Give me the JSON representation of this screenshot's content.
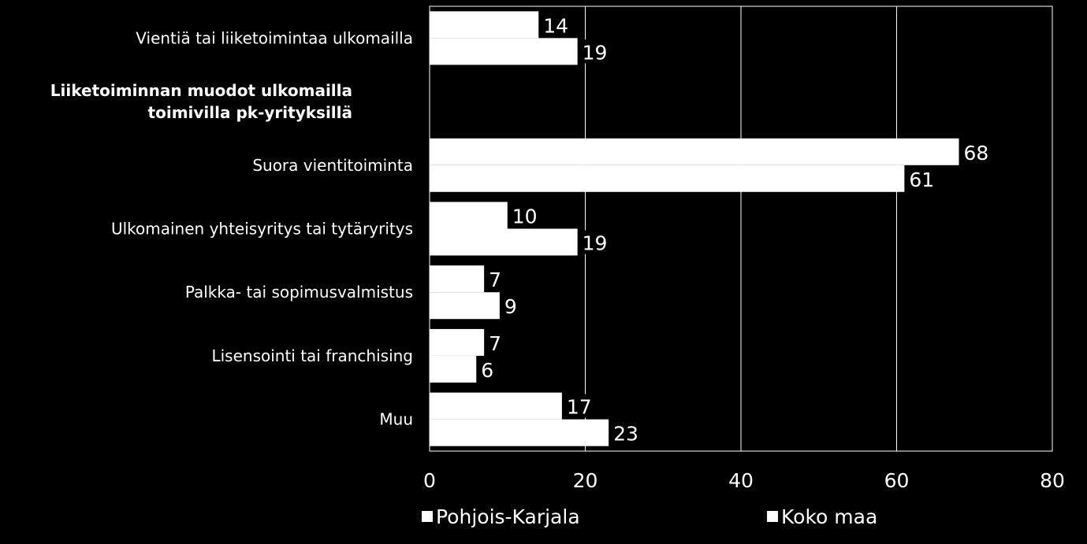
{
  "chart_data": {
    "type": "bar",
    "orientation": "horizontal",
    "categories": [
      "Vientiä tai liiketoimintaa ulkomailla",
      "",
      "Suora vientitoiminta",
      "Ulkomainen yhteisyritys tai tytäryritys",
      "Palkka- tai sopimusvalmistus",
      "Lisensointi tai franchising",
      "Muu"
    ],
    "section_title": [
      "Liiketoiminnan muodot ulkomailla",
      "toimivilla pk-yrityksillä"
    ],
    "series": [
      {
        "name": "Pohjois-Karjala",
        "values": [
          14,
          null,
          68,
          10,
          7,
          7,
          17
        ]
      },
      {
        "name": "Koko maa",
        "values": [
          19,
          null,
          61,
          19,
          9,
          6,
          23
        ]
      }
    ],
    "value_labels": [
      [
        "14",
        "",
        "68",
        "10",
        "7",
        "7",
        "17"
      ],
      [
        "19",
        "",
        "61",
        "19",
        "9",
        "6",
        "23"
      ]
    ],
    "x_ticks": [
      "0",
      "20",
      "40",
      "60",
      "80"
    ],
    "xlim": [
      0,
      80
    ],
    "grid": true,
    "legend_position": "bottom",
    "colors": {
      "background": "#000000",
      "bar": "#ffffff",
      "grid": "#ffffff",
      "text": "#ffffff"
    }
  }
}
